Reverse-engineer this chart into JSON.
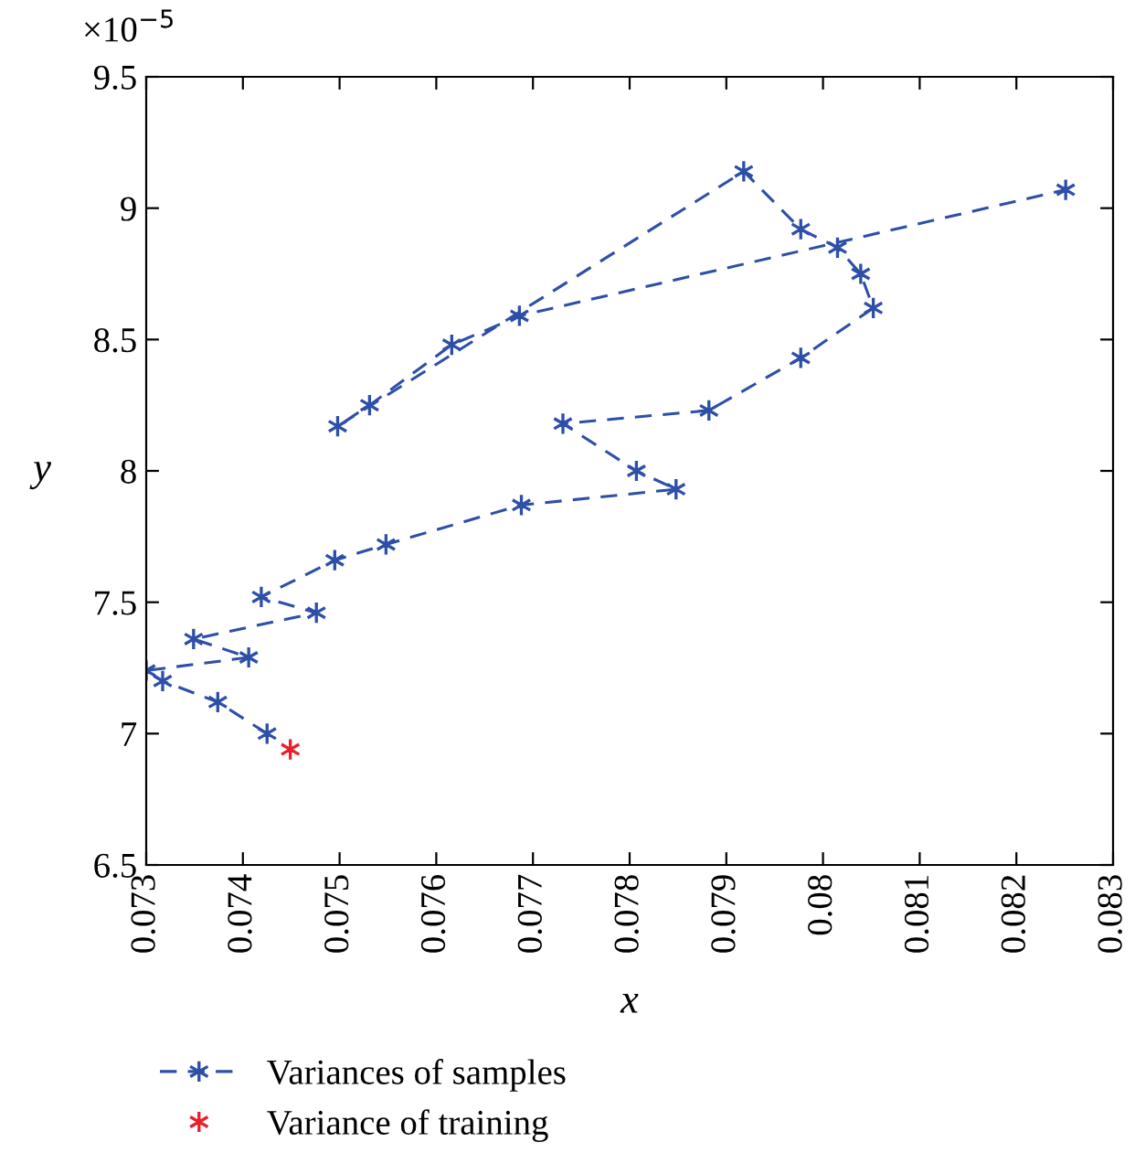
{
  "chart_data": {
    "type": "line",
    "xlabel": "x",
    "ylabel": "y",
    "annotations": [
      "×10$^{−5}$"
    ],
    "xlim": [
      0.073,
      0.083
    ],
    "xticks": [
      0.073,
      0.074,
      0.075,
      0.076,
      0.077,
      0.078,
      0.079,
      0.08,
      0.081,
      0.082,
      0.083
    ],
    "ylim": [
      6.5,
      9.5
    ],
    "yticks": [
      6.5,
      7,
      7.5,
      8,
      8.5,
      9,
      9.5
    ],
    "grid": false,
    "legend": "bottom",
    "series": [
      {
        "name": "Variances of samples",
        "color": "#2e4fa8",
        "marker": "cross",
        "line_style": "dashed",
        "x": [
          0.07425,
          0.07374,
          0.07317,
          0.073,
          0.07406,
          0.07349,
          0.07476,
          0.07419,
          0.07495,
          0.07548,
          0.07688,
          0.07848,
          0.07807,
          0.07731,
          0.07882,
          0.07977,
          0.08052,
          0.08039,
          0.08015,
          0.07977,
          0.07918,
          0.07498,
          0.07531,
          0.07616,
          0.07686,
          0.08251
        ],
        "values": [
          7.0,
          7.12,
          7.2,
          7.24,
          7.29,
          7.36,
          7.46,
          7.52,
          7.66,
          7.72,
          7.87,
          7.93,
          8.0,
          8.18,
          8.23,
          8.43,
          8.62,
          8.75,
          8.85,
          8.92,
          9.14,
          8.17,
          8.25,
          8.48,
          8.59,
          9.07
        ]
      },
      {
        "name": "Variance of training",
        "color": "#e8202a",
        "type": "scatter",
        "marker": "cross",
        "x": [
          0.07449
        ],
        "values": [
          6.94
        ]
      }
    ]
  }
}
